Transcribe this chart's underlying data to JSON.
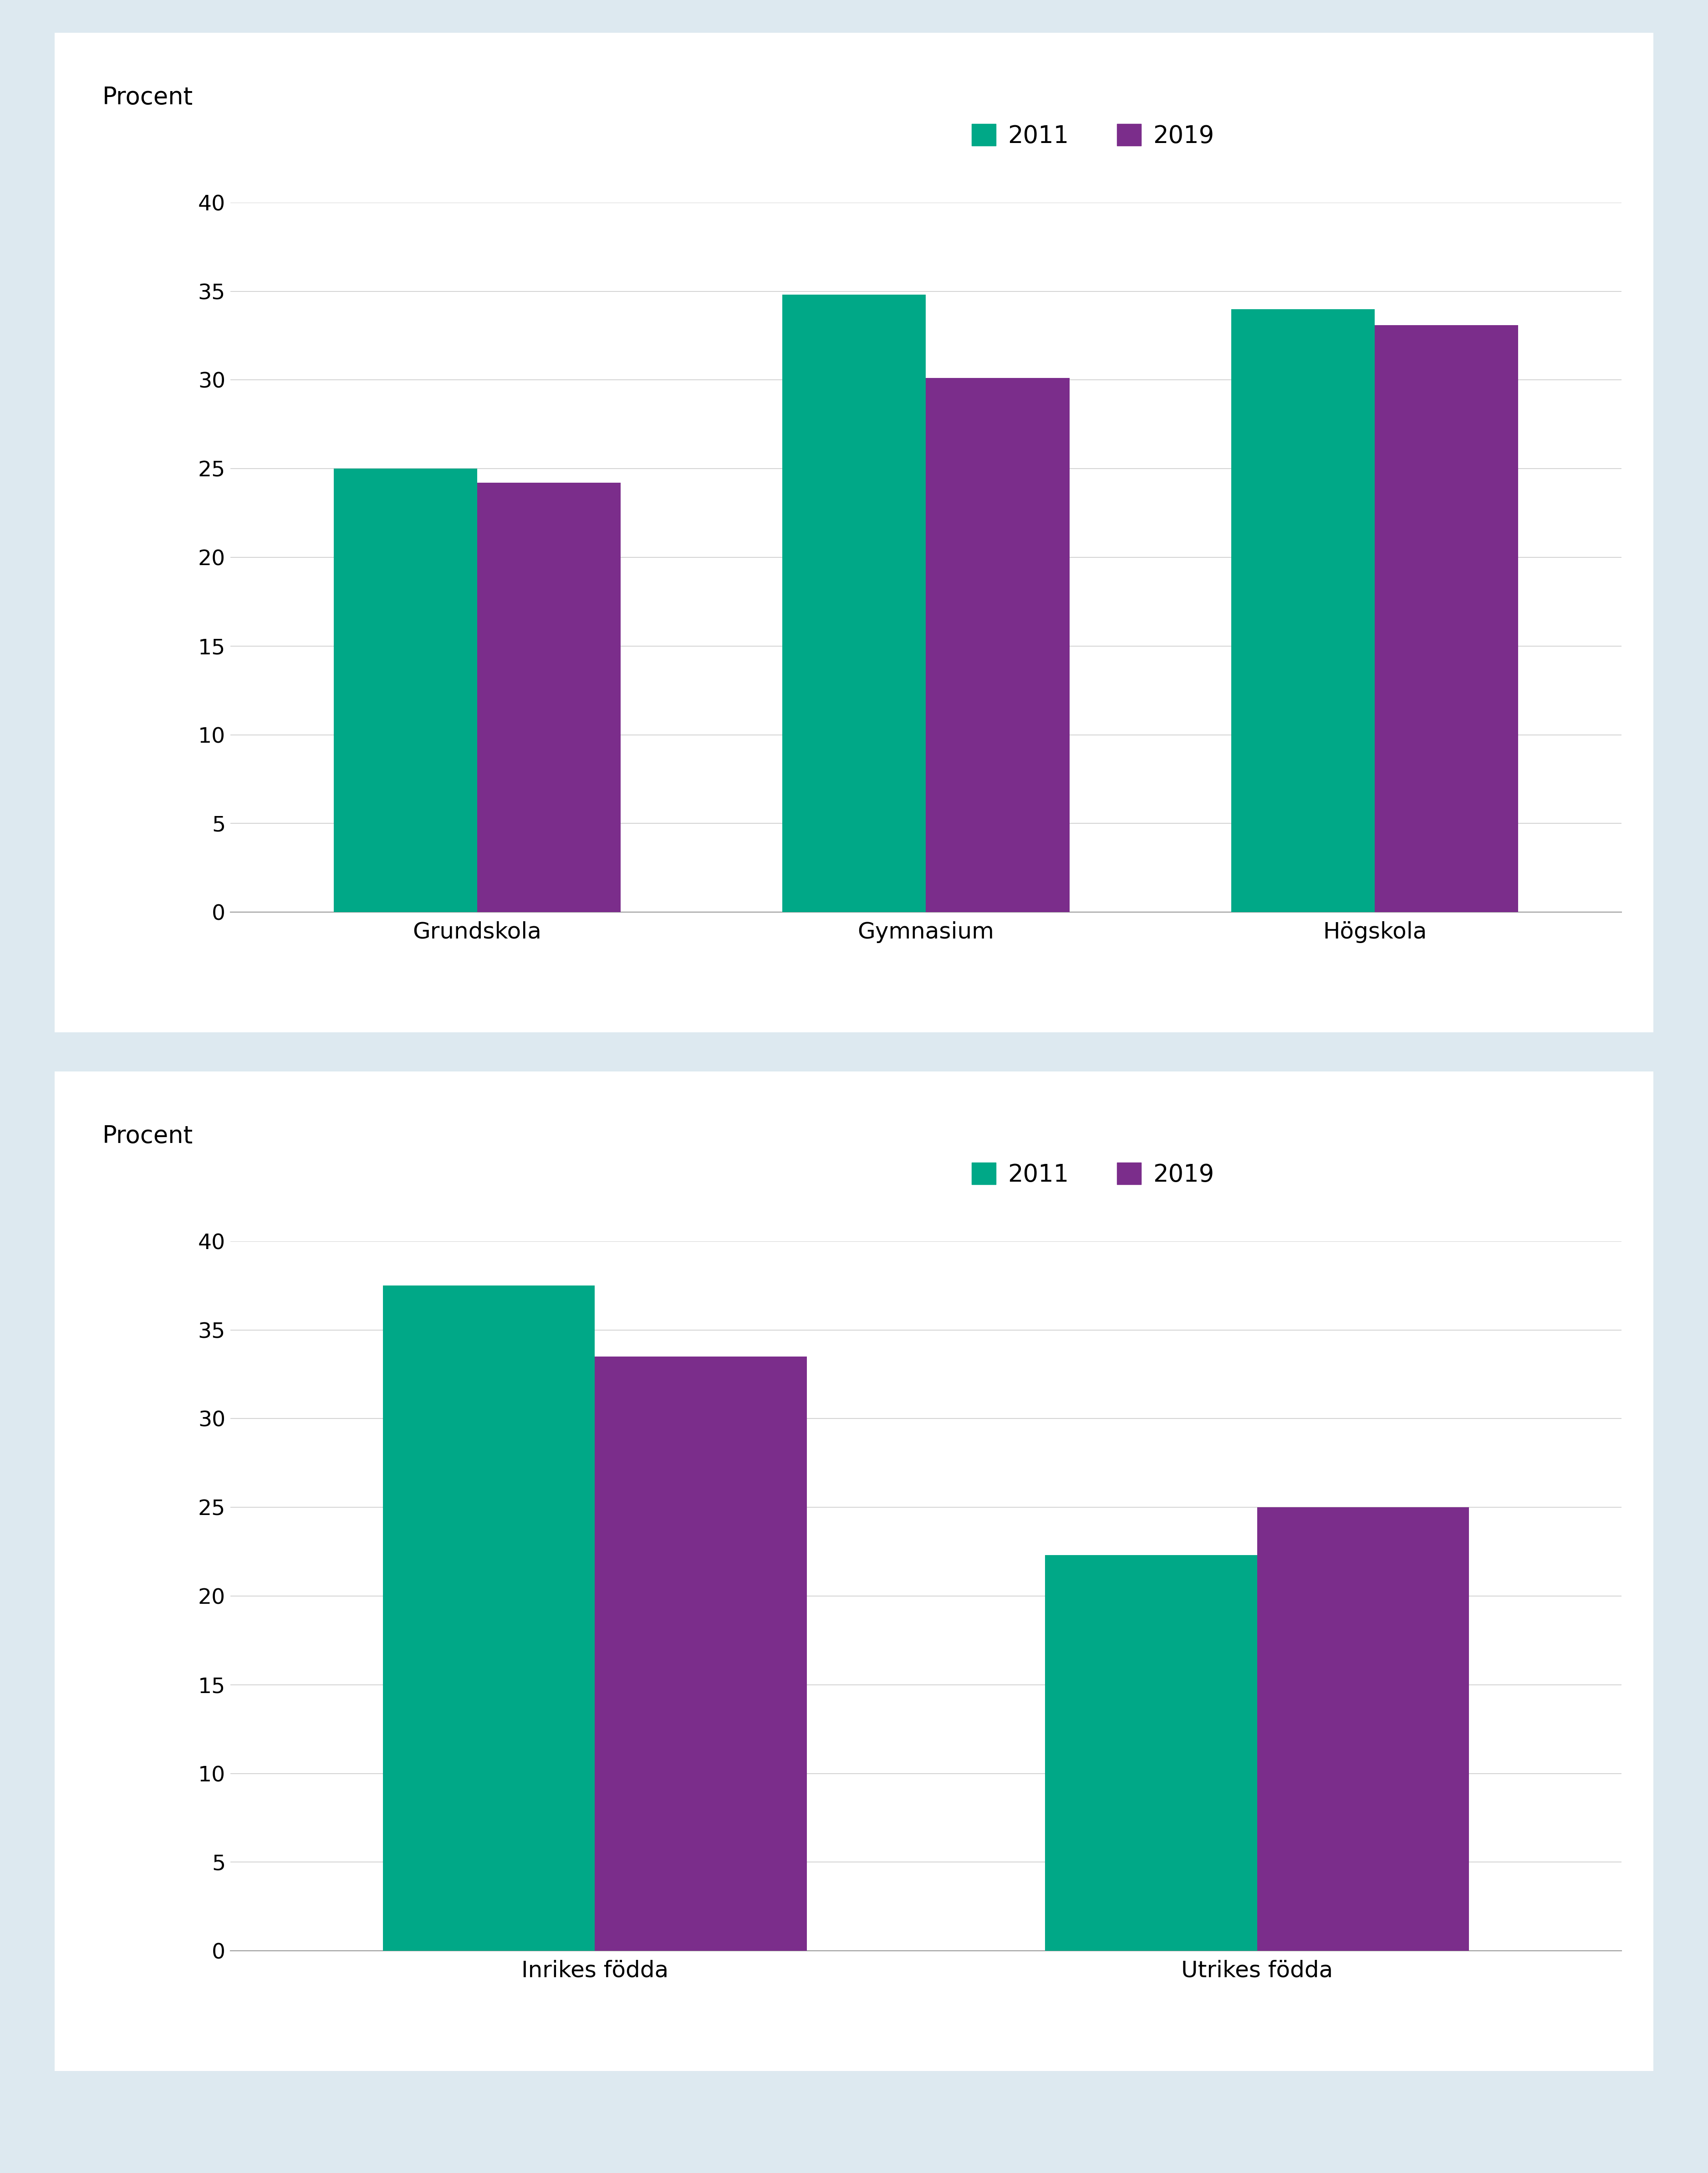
{
  "chart1": {
    "categories": [
      "Grundskola",
      "Gymnasium",
      "Högskola"
    ],
    "values_2011": [
      25.0,
      34.8,
      34.0
    ],
    "values_2019": [
      24.2,
      30.1,
      33.1
    ],
    "ylabel": "Procent",
    "ylim": [
      0,
      40
    ],
    "yticks": [
      0,
      5,
      10,
      15,
      20,
      25,
      30,
      35,
      40
    ]
  },
  "chart2": {
    "categories": [
      "Inrikes födda",
      "Utrikes födda"
    ],
    "values_2011": [
      37.5,
      22.3
    ],
    "values_2019": [
      33.5,
      25.0
    ],
    "ylabel": "Procent",
    "ylim": [
      0,
      40
    ],
    "yticks": [
      0,
      5,
      10,
      15,
      20,
      25,
      30,
      35,
      40
    ]
  },
  "color_2011": "#00A887",
  "color_2019": "#7B2D8B",
  "legend_labels": [
    "2011",
    "2019"
  ],
  "background_outer": "#DDE9F0",
  "background_chart": "#FFFFFF",
  "bar_width": 0.32,
  "fontsize_ylabel": 38,
  "fontsize_tick": 34,
  "fontsize_legend": 38,
  "fontsize_xticklabel": 36
}
